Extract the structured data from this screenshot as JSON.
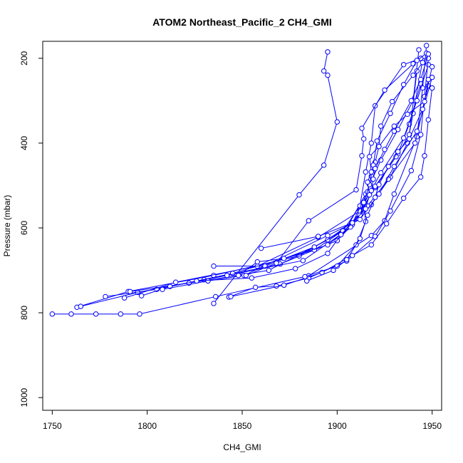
{
  "chart_data": {
    "type": "line",
    "title": "ATOM2 Northeast_Pacific_2 CH4_GMI",
    "xlabel": "CH4_GMI",
    "ylabel": "Pressure (mbar)",
    "xlim": [
      1745,
      1955
    ],
    "ylim": [
      1030,
      160
    ],
    "y_reversed": true,
    "xticks": [
      1750,
      1800,
      1850,
      1900,
      1950
    ],
    "yticks": [
      200,
      400,
      600,
      800,
      1000
    ],
    "series_color": "#0000ff",
    "marker": "open-circle",
    "series": [
      {
        "values": [
          [
            1895,
            185
          ],
          [
            1893,
            230
          ],
          [
            1895,
            240
          ],
          [
            1900,
            350
          ],
          [
            1893,
            452
          ],
          [
            1880,
            522
          ],
          [
            1835,
            778
          ]
        ]
      },
      {
        "values": [
          [
            1750,
            803
          ],
          [
            1760,
            803
          ],
          [
            1773,
            803
          ],
          [
            1786,
            803
          ],
          [
            1796,
            803
          ],
          [
            1836,
            762
          ],
          [
            1885,
            713
          ],
          [
            1918,
            618
          ],
          [
            1925,
            583
          ],
          [
            1930,
            520
          ],
          [
            1942,
            385
          ],
          [
            1945,
            270
          ],
          [
            1947,
            170
          ]
        ]
      },
      {
        "values": [
          [
            1763,
            787
          ],
          [
            1790,
            750
          ],
          [
            1835,
            712
          ],
          [
            1880,
            666
          ],
          [
            1905,
            600
          ],
          [
            1915,
            520
          ],
          [
            1923,
            440
          ],
          [
            1932,
            368
          ],
          [
            1940,
            300
          ],
          [
            1943,
            180
          ]
        ]
      },
      {
        "values": [
          [
            1765,
            785
          ],
          [
            1795,
            752
          ],
          [
            1830,
            722
          ],
          [
            1870,
            685
          ],
          [
            1900,
            630
          ],
          [
            1918,
            545
          ],
          [
            1928,
            480
          ],
          [
            1937,
            400
          ],
          [
            1940,
            330
          ],
          [
            1945,
            205
          ]
        ]
      },
      {
        "values": [
          [
            1778,
            762
          ],
          [
            1805,
            745
          ],
          [
            1845,
            707
          ],
          [
            1888,
            652
          ],
          [
            1908,
            592
          ],
          [
            1920,
            505
          ],
          [
            1932,
            425
          ],
          [
            1938,
            355
          ],
          [
            1944,
            260
          ]
        ]
      },
      {
        "values": [
          [
            1788,
            765
          ],
          [
            1815,
            728
          ],
          [
            1858,
            690
          ],
          [
            1890,
            622
          ],
          [
            1912,
            560
          ],
          [
            1923,
            470
          ],
          [
            1935,
            388
          ],
          [
            1942,
            300
          ],
          [
            1948,
            215
          ]
        ]
      },
      {
        "values": [
          [
            1791,
            750
          ],
          [
            1822,
            730
          ],
          [
            1864,
            700
          ],
          [
            1895,
            628
          ],
          [
            1911,
            577
          ],
          [
            1920,
            502
          ],
          [
            1931,
            432
          ],
          [
            1938,
            380
          ],
          [
            1942,
            230
          ]
        ]
      },
      {
        "values": [
          [
            1797,
            760
          ],
          [
            1812,
            738
          ],
          [
            1842,
            712
          ],
          [
            1882,
            677
          ],
          [
            1902,
            615
          ],
          [
            1916,
            548
          ],
          [
            1927,
            485
          ],
          [
            1941,
            400
          ],
          [
            1948,
            265
          ]
        ]
      },
      {
        "values": [
          [
            1808,
            745
          ],
          [
            1832,
            725
          ],
          [
            1851,
            712
          ],
          [
            1895,
            618
          ],
          [
            1912,
            580
          ],
          [
            1922,
            520
          ],
          [
            1930,
            455
          ],
          [
            1942,
            372
          ],
          [
            1950,
            245
          ]
        ]
      },
      {
        "values": [
          [
            1843,
            763
          ],
          [
            1857,
            740
          ],
          [
            1868,
            737
          ],
          [
            1885,
            718
          ],
          [
            1905,
            678
          ],
          [
            1920,
            620
          ],
          [
            1928,
            560
          ],
          [
            1939,
            465
          ],
          [
            1944,
            380
          ],
          [
            1946,
            290
          ],
          [
            1948,
            200
          ]
        ]
      },
      {
        "values": [
          [
            1844,
            762
          ],
          [
            1872,
            735
          ],
          [
            1892,
            705
          ],
          [
            1908,
            665
          ],
          [
            1918,
            640
          ],
          [
            1926,
            590
          ],
          [
            1935,
            530
          ],
          [
            1944,
            480
          ],
          [
            1946,
            430
          ],
          [
            1948,
            345
          ],
          [
            1950,
            270
          ]
        ]
      },
      {
        "values": [
          [
            1835,
            690
          ],
          [
            1862,
            690
          ],
          [
            1888,
            645
          ],
          [
            1903,
            607
          ],
          [
            1912,
            548
          ],
          [
            1915,
            468
          ],
          [
            1918,
            400
          ],
          [
            1920,
            312
          ],
          [
            1935,
            215
          ],
          [
            1944,
            200
          ]
        ]
      },
      {
        "values": [
          [
            1852,
            712
          ],
          [
            1868,
            683
          ],
          [
            1885,
            583
          ],
          [
            1910,
            510
          ],
          [
            1913,
            430
          ],
          [
            1914,
            390
          ],
          [
            1913,
            365
          ],
          [
            1925,
            275
          ],
          [
            1940,
            213
          ],
          [
            1947,
            188
          ]
        ]
      },
      {
        "values": [
          [
            1848,
            712
          ],
          [
            1858,
            680
          ],
          [
            1872,
            672
          ],
          [
            1895,
            640
          ],
          [
            1907,
            598
          ],
          [
            1916,
            515
          ],
          [
            1918,
            478
          ],
          [
            1920,
            445
          ],
          [
            1922,
            408
          ],
          [
            1923,
            360
          ],
          [
            1929,
            302
          ],
          [
            1940,
            240
          ],
          [
            1945,
            210
          ]
        ]
      },
      {
        "values": [
          [
            1826,
            725
          ],
          [
            1855,
            718
          ],
          [
            1878,
            696
          ],
          [
            1895,
            660
          ],
          [
            1902,
            616
          ],
          [
            1912,
            570
          ],
          [
            1917,
            498
          ],
          [
            1919,
            452
          ],
          [
            1921,
            395
          ],
          [
            1928,
            330
          ],
          [
            1935,
            262
          ],
          [
            1942,
            205
          ]
        ]
      },
      {
        "values": [
          [
            1883,
            715
          ],
          [
            1900,
            690
          ],
          [
            1910,
            640
          ],
          [
            1915,
            585
          ],
          [
            1914,
            540
          ],
          [
            1918,
            512
          ],
          [
            1919,
            485
          ],
          [
            1920,
            460
          ],
          [
            1925,
            415
          ],
          [
            1930,
            372
          ],
          [
            1939,
            300
          ],
          [
            1944,
            250
          ],
          [
            1948,
            190
          ]
        ]
      },
      {
        "values": [
          [
            1884,
            725
          ],
          [
            1898,
            700
          ],
          [
            1905,
            675
          ],
          [
            1912,
            625
          ],
          [
            1916,
            570
          ],
          [
            1920,
            528
          ],
          [
            1922,
            498
          ],
          [
            1927,
            455
          ],
          [
            1932,
            420
          ],
          [
            1938,
            390
          ],
          [
            1945,
            320
          ],
          [
            1950,
            220
          ]
        ]
      },
      {
        "values": [
          [
            1860,
            648
          ],
          [
            1890,
            620
          ],
          [
            1908,
            588
          ],
          [
            1915,
            555
          ],
          [
            1917,
            522
          ],
          [
            1916,
            492
          ],
          [
            1918,
            468
          ],
          [
            1917,
            432
          ],
          [
            1922,
            408
          ],
          [
            1930,
            360
          ],
          [
            1937,
            332
          ],
          [
            1946,
            302
          ],
          [
            1948,
            250
          ]
        ]
      }
    ]
  }
}
